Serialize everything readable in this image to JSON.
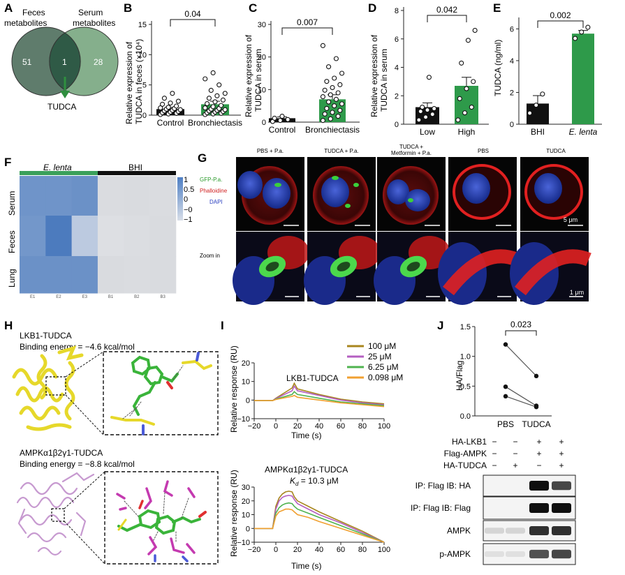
{
  "panels": {
    "A": {
      "letter": "A",
      "left_label": [
        "Feces",
        "metabolites"
      ],
      "right_label": [
        "Serum",
        "metabolites"
      ],
      "left_only": "51",
      "overlap": "1",
      "right_only": "28",
      "result": "TUDCA",
      "colors": {
        "left": "#5f7c6c",
        "right": "#7eab86",
        "overlap": "#2f5a46",
        "arrow": "#2f8f3f"
      }
    },
    "B": {
      "letter": "B",
      "ylabel": [
        "Relative expression of",
        "TUDCA in feces (×10⁴)"
      ],
      "p": "0.04",
      "ticks": [
        "0",
        "5",
        "10",
        "15"
      ],
      "xticks": [
        "Control",
        "Bronchiectasis"
      ]
    },
    "C": {
      "letter": "C",
      "ylabel": [
        "Relative expression of",
        "TUDCA in serum"
      ],
      "p": "0.007",
      "ticks": [
        "0",
        "10",
        "20",
        "30"
      ],
      "xticks": [
        "Control",
        "Bronchiectasis"
      ]
    },
    "D": {
      "letter": "D",
      "ylabel": [
        "Relative expression of",
        "TUDCA in serum"
      ],
      "p": "0.042",
      "ticks": [
        "0",
        "2",
        "4",
        "6",
        "8"
      ],
      "xticks": [
        "Low",
        "High"
      ]
    },
    "E": {
      "letter": "E",
      "ylabel": [
        "TUDCA (ng/ml)"
      ],
      "p": "0.002",
      "ticks": [
        "0",
        "2",
        "4",
        "6"
      ],
      "xticks": [
        "BHI",
        "E. lenta"
      ]
    },
    "F": {
      "letter": "F",
      "group1": "E. lenta",
      "group2": "BHI",
      "rows": [
        "Serum",
        "Feces",
        "Lung"
      ],
      "cols": [
        "E1",
        "E2",
        "E3",
        "B1",
        "B2",
        "B3"
      ],
      "scale": [
        "1",
        "0.5",
        "0",
        "−0",
        "−1"
      ]
    },
    "G": {
      "letter": "G",
      "cols": [
        "PBS + P.a.",
        "TUDCA + P.a.",
        "TUDCA +",
        "PBS",
        "TUDCA"
      ],
      "col3_line2": "Metformin + P.a.",
      "legend": [
        "GFP-P.a.",
        "Phalloidine",
        "DAPI"
      ],
      "zoom": "Zoom in",
      "scale_top": "5 μm",
      "scale_bottom": "1 μm",
      "legend_colors": [
        "#2a9a2a",
        "#d02020",
        "#2a3fc0"
      ]
    },
    "H": {
      "letter": "H",
      "top_title": "LKB1-TUDCA",
      "top_energy": "Binding energy = −4.6 kcal/mol",
      "bottom_title": "AMPKα1β2γ1-TUDCA",
      "bottom_energy": "Binding energy = −8.8 kcal/mol"
    },
    "I": {
      "letter": "I",
      "top_title": "LKB1-TUDCA",
      "bottom_title": "AMPKα1β2γ1-TUDCA",
      "kd": "K",
      "kd_sub": "d",
      "kd_value": " = 10.3 μM",
      "ylabel": "Relative response (RU)",
      "xlabel": "Time (s)",
      "top_yticks": [
        "20",
        "10",
        "0",
        "−10"
      ],
      "bottom_yticks": [
        "30",
        "20",
        "10",
        "0",
        "−10"
      ],
      "xticks": [
        "−20",
        "0",
        "20",
        "40",
        "60",
        "80",
        "100"
      ],
      "legend": [
        "100 μM",
        "25 μM",
        "6.25 μM",
        "0.098 μM"
      ],
      "colors": [
        "#a8861e",
        "#b45fc1",
        "#4fb34f",
        "#f0a030"
      ]
    },
    "J": {
      "letter": "J",
      "ylabel": "HA/Flag",
      "p": "0.023",
      "yticks": [
        "1.5",
        "1.0",
        "0.5",
        "0.0"
      ],
      "xticks": [
        "PBS",
        "TUDCA"
      ],
      "rows": [
        {
          "label": "HA-LKB1",
          "marks": [
            "−",
            "−",
            "+",
            "+"
          ]
        },
        {
          "label": "Flag-AMPK",
          "marks": [
            "−",
            "−",
            "+",
            "+"
          ]
        },
        {
          "label": "HA-TUDCA",
          "marks": [
            "−",
            "+",
            "−",
            "+"
          ]
        }
      ],
      "blots": [
        "IP: Flag  IB: HA",
        "IP: Flag  IB: Flag",
        "AMPK",
        "p-AMPK"
      ]
    }
  },
  "chart_data": [
    {
      "panel": "B",
      "type": "bar",
      "categories": [
        "Control",
        "Bronchiectasis"
      ],
      "values": [
        1.0,
        1.8
      ],
      "errors": [
        0.3,
        0.5
      ],
      "ylim": [
        0,
        15
      ],
      "p_value": "0.04",
      "points": [
        [
          0.1,
          0.2,
          0.3,
          0.4,
          0.5,
          0.6,
          0.7,
          0.8,
          0.9,
          1.0,
          1.1,
          1.2,
          1.3,
          1.5,
          1.8,
          2.0,
          2.3,
          2.8,
          3.6
        ],
        [
          0.1,
          0.2,
          0.3,
          0.4,
          0.5,
          0.6,
          0.7,
          0.8,
          0.9,
          1.0,
          1.1,
          1.2,
          1.4,
          1.6,
          1.9,
          2.2,
          2.5,
          2.8,
          3.2,
          3.6,
          4.1,
          5.0,
          6.0,
          7.0
        ]
      ],
      "bar_colors": [
        "#111111",
        "#2e9a4a"
      ]
    },
    {
      "panel": "C",
      "type": "bar",
      "categories": [
        "Control",
        "Bronchiectasis"
      ],
      "values": [
        1.2,
        7.0
      ],
      "errors": [
        0.4,
        1.4
      ],
      "ylim": [
        0,
        30
      ],
      "p_value": "0.007",
      "points": [
        [
          0.2,
          0.5,
          0.8,
          1.2,
          1.8
        ],
        [
          0.5,
          1.0,
          1.8,
          2.5,
          3.0,
          3.6,
          4.2,
          5.0,
          5.6,
          6.2,
          7.0,
          7.8,
          8.4,
          9.0,
          9.8,
          10.6,
          11.5,
          12.5,
          13.5,
          15.0,
          17.0,
          19.5,
          23.5
        ]
      ],
      "bar_colors": [
        "#111111",
        "#2e9a4a"
      ]
    },
    {
      "panel": "D",
      "type": "bar",
      "categories": [
        "Low",
        "High"
      ],
      "values": [
        1.2,
        2.7
      ],
      "errors": [
        0.3,
        0.6
      ],
      "ylim": [
        0,
        8
      ],
      "p_value": "0.042",
      "points": [
        [
          0.3,
          0.5,
          0.7,
          0.9,
          1.0,
          1.1,
          1.2,
          3.3
        ],
        [
          0.3,
          0.8,
          1.2,
          1.8,
          2.5,
          3.0,
          4.3,
          5.9,
          6.6
        ]
      ],
      "bar_colors": [
        "#111111",
        "#2e9a4a"
      ]
    },
    {
      "panel": "E",
      "type": "bar",
      "categories": [
        "BHI",
        "E. lenta"
      ],
      "values": [
        1.3,
        5.7
      ],
      "errors": [
        0.5,
        0.2
      ],
      "ylim": [
        0,
        6.5
      ],
      "p_value": "0.002",
      "points": [
        [
          0.7,
          1.2,
          1.9
        ],
        [
          5.4,
          5.8,
          6.1
        ]
      ],
      "bar_colors": [
        "#111111",
        "#2e9a4a"
      ]
    },
    {
      "panel": "F",
      "type": "heatmap",
      "rows": [
        "Serum",
        "Feces",
        "Lung"
      ],
      "cols": [
        "E1",
        "E2",
        "E3",
        "B1",
        "B2",
        "B3"
      ],
      "values": [
        [
          0.75,
          0.75,
          0.78,
          -0.4,
          -0.42,
          -0.4
        ],
        [
          0.72,
          1.0,
          0.2,
          -0.2,
          -0.35,
          -0.45
        ],
        [
          0.78,
          0.78,
          0.78,
          -0.42,
          -0.4,
          -0.42
        ]
      ],
      "colorbar": [
        -1,
        1
      ]
    },
    {
      "panel": "I-top",
      "type": "line",
      "x": [
        -20,
        -3,
        0,
        15,
        17,
        20,
        40,
        60,
        80,
        100
      ],
      "series": [
        {
          "name": "100 μM",
          "values": [
            -0.3,
            -0.3,
            1.0,
            6.5,
            9.0,
            6.0,
            3.0,
            0.5,
            -1.0,
            -2.0
          ]
        },
        {
          "name": "25 μM",
          "values": [
            -0.3,
            -0.3,
            0.8,
            5.0,
            7.5,
            5.0,
            2.5,
            0.0,
            -1.5,
            -2.5
          ]
        },
        {
          "name": "6.25 μM",
          "values": [
            -0.3,
            -0.3,
            0.5,
            3.0,
            4.5,
            3.0,
            1.0,
            -1.0,
            -2.0,
            -3.0
          ]
        },
        {
          "name": "0.098 μM",
          "values": [
            -0.3,
            -0.3,
            0.3,
            2.0,
            2.5,
            1.5,
            0.0,
            -1.5,
            -2.5,
            -3.5
          ]
        }
      ],
      "xlim": [
        -20,
        100
      ],
      "ylim": [
        -10,
        20
      ]
    },
    {
      "panel": "I-bottom",
      "type": "line",
      "x": [
        -20,
        -3,
        0,
        3,
        6,
        9,
        12,
        15,
        17,
        20,
        30,
        40,
        60,
        80,
        100
      ],
      "series": [
        {
          "name": "100 μM",
          "values": [
            0,
            0,
            16,
            22,
            25,
            26.5,
            27,
            26.5,
            23,
            20,
            16,
            12,
            5,
            -2,
            -10
          ]
        },
        {
          "name": "25 μM",
          "values": [
            0,
            0,
            14,
            20,
            22.5,
            23.5,
            24,
            23.5,
            21,
            18,
            14,
            10,
            4,
            -3,
            -10
          ]
        },
        {
          "name": "6.25 μM",
          "values": [
            0,
            0,
            11,
            15,
            17,
            18,
            18.5,
            18,
            16,
            14,
            11,
            8,
            2,
            -4,
            -10
          ]
        },
        {
          "name": "0.098 μM",
          "values": [
            0,
            0,
            9,
            12,
            13,
            14,
            14,
            13.5,
            12,
            10,
            8,
            5,
            0,
            -5,
            -10
          ]
        }
      ],
      "xlim": [
        -20,
        100
      ],
      "ylim": [
        -10,
        30
      ]
    },
    {
      "panel": "J",
      "type": "line",
      "categories": [
        "PBS",
        "TUDCA"
      ],
      "series": [
        {
          "values": [
            1.2,
            0.67
          ]
        },
        {
          "values": [
            0.49,
            0.17
          ]
        },
        {
          "values": [
            0.33,
            0.15
          ]
        }
      ],
      "ylim": [
        0,
        1.5
      ],
      "p_value": "0.023"
    }
  ]
}
